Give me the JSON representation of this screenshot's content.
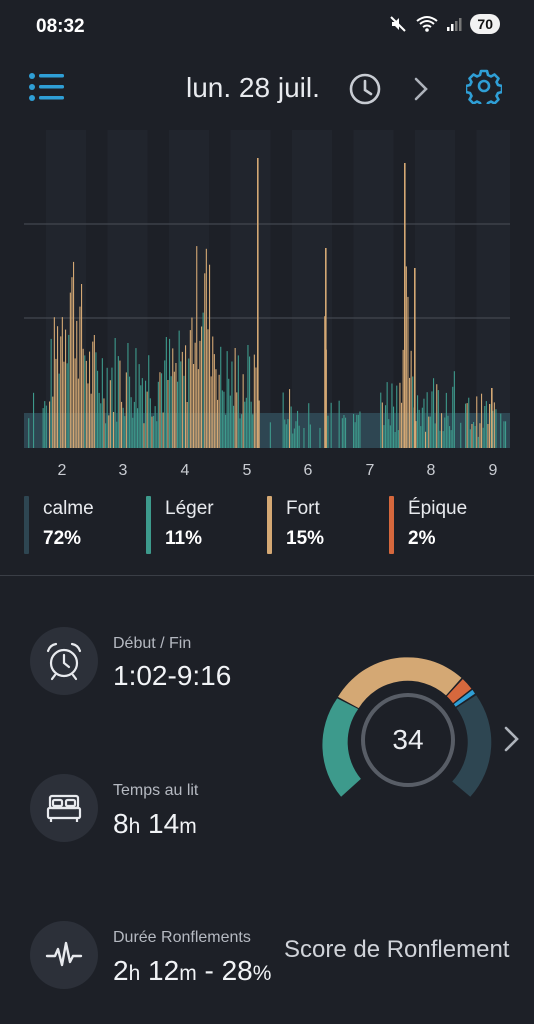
{
  "status_bar": {
    "time": "08:32",
    "battery": "70"
  },
  "header": {
    "date": "lun. 28 juil."
  },
  "chart_data": {
    "type": "area",
    "x_ticks": [
      "2",
      "3",
      "4",
      "5",
      "6",
      "7",
      "8",
      "9"
    ]
  },
  "legend": [
    {
      "name": "calme",
      "pct": "72%",
      "color": "#2e4652"
    },
    {
      "name": "Léger",
      "pct": "11%",
      "color": "#3d9a8c"
    },
    {
      "name": "Fort",
      "pct": "15%",
      "color": "#d4a874"
    },
    {
      "name": "Épique",
      "pct": "2%",
      "color": "#d6683d"
    }
  ],
  "stats": {
    "start_end": {
      "label": "Début / Fin",
      "value": "1:02-9:16"
    },
    "bed_time": {
      "label": "Temps au lit",
      "h_num": "8",
      "h_unit": "h",
      "m_num": "14",
      "m_unit": "m"
    },
    "snore": {
      "label": "Durée Ronflements",
      "h_num": "2",
      "h_unit": "h",
      "m_num": "12",
      "m_unit": "m",
      "sep": " - ",
      "pct_num": "28",
      "pct_unit": "%"
    }
  },
  "score": {
    "value": "34",
    "label": "Score de Ronflement"
  },
  "colors": {
    "accent": "#2f9fd6",
    "calme": "#2e4652",
    "leger": "#3d9a8c",
    "fort": "#d4a874",
    "epique": "#d6683d"
  }
}
